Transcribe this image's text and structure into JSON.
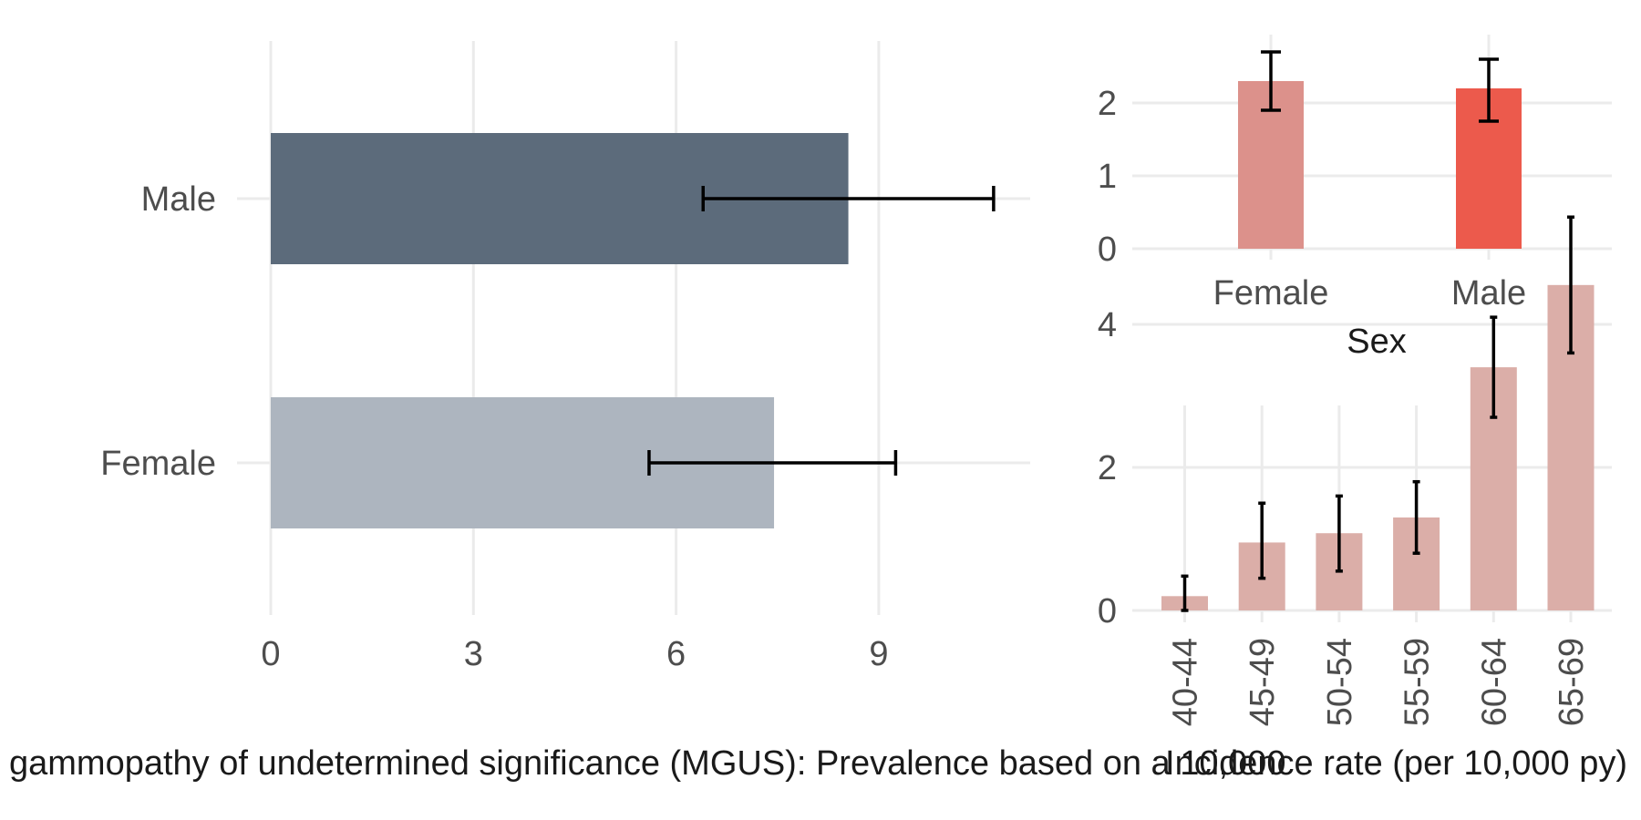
{
  "chart_data": [
    {
      "type": "bar",
      "orientation": "horizontal",
      "categories": [
        "Female",
        "Male"
      ],
      "values": [
        7.45,
        8.55
      ],
      "error_low": [
        5.6,
        6.4
      ],
      "error_high": [
        9.25,
        10.7
      ],
      "colors": [
        "#adb5bf",
        "#5c6b7b"
      ],
      "xlim": [
        0,
        11.2
      ],
      "x_ticks": [
        "0",
        "3",
        "6",
        "9"
      ],
      "x_tick_values": [
        0,
        3,
        6,
        9
      ],
      "xlabel": "gammopathy of undetermined significance (MGUS): Prevalence based on a 10,000",
      "grid": true
    },
    {
      "type": "bar",
      "categories": [
        "Female",
        "Male"
      ],
      "values": [
        2.3,
        2.2
      ],
      "error_low": [
        1.9,
        1.75
      ],
      "error_high": [
        2.7,
        2.6
      ],
      "colors": [
        "#dc918b",
        "#ec5a4c"
      ],
      "ylim": [
        0,
        2.9
      ],
      "y_ticks": [
        "0",
        "1",
        "2"
      ],
      "y_tick_values": [
        0,
        1,
        2
      ],
      "xlabel": "Sex",
      "grid": true
    },
    {
      "type": "bar",
      "categories": [
        "40-44",
        "45-49",
        "50-54",
        "55-59",
        "60-64",
        "65-69"
      ],
      "values": [
        0.2,
        0.95,
        1.08,
        1.3,
        3.4,
        4.55
      ],
      "error_low": [
        0.0,
        0.45,
        0.55,
        0.8,
        2.7,
        3.6
      ],
      "error_high": [
        0.48,
        1.5,
        1.6,
        1.8,
        4.1,
        5.5
      ],
      "colors": [
        "#dbaea8"
      ],
      "ylim": [
        0,
        5.6
      ],
      "y_ticks": [
        "0",
        "2",
        "4"
      ],
      "y_tick_values": [
        0,
        2,
        4
      ],
      "xlabel": "Incidence rate (per 10,000 py)",
      "grid": true
    }
  ]
}
